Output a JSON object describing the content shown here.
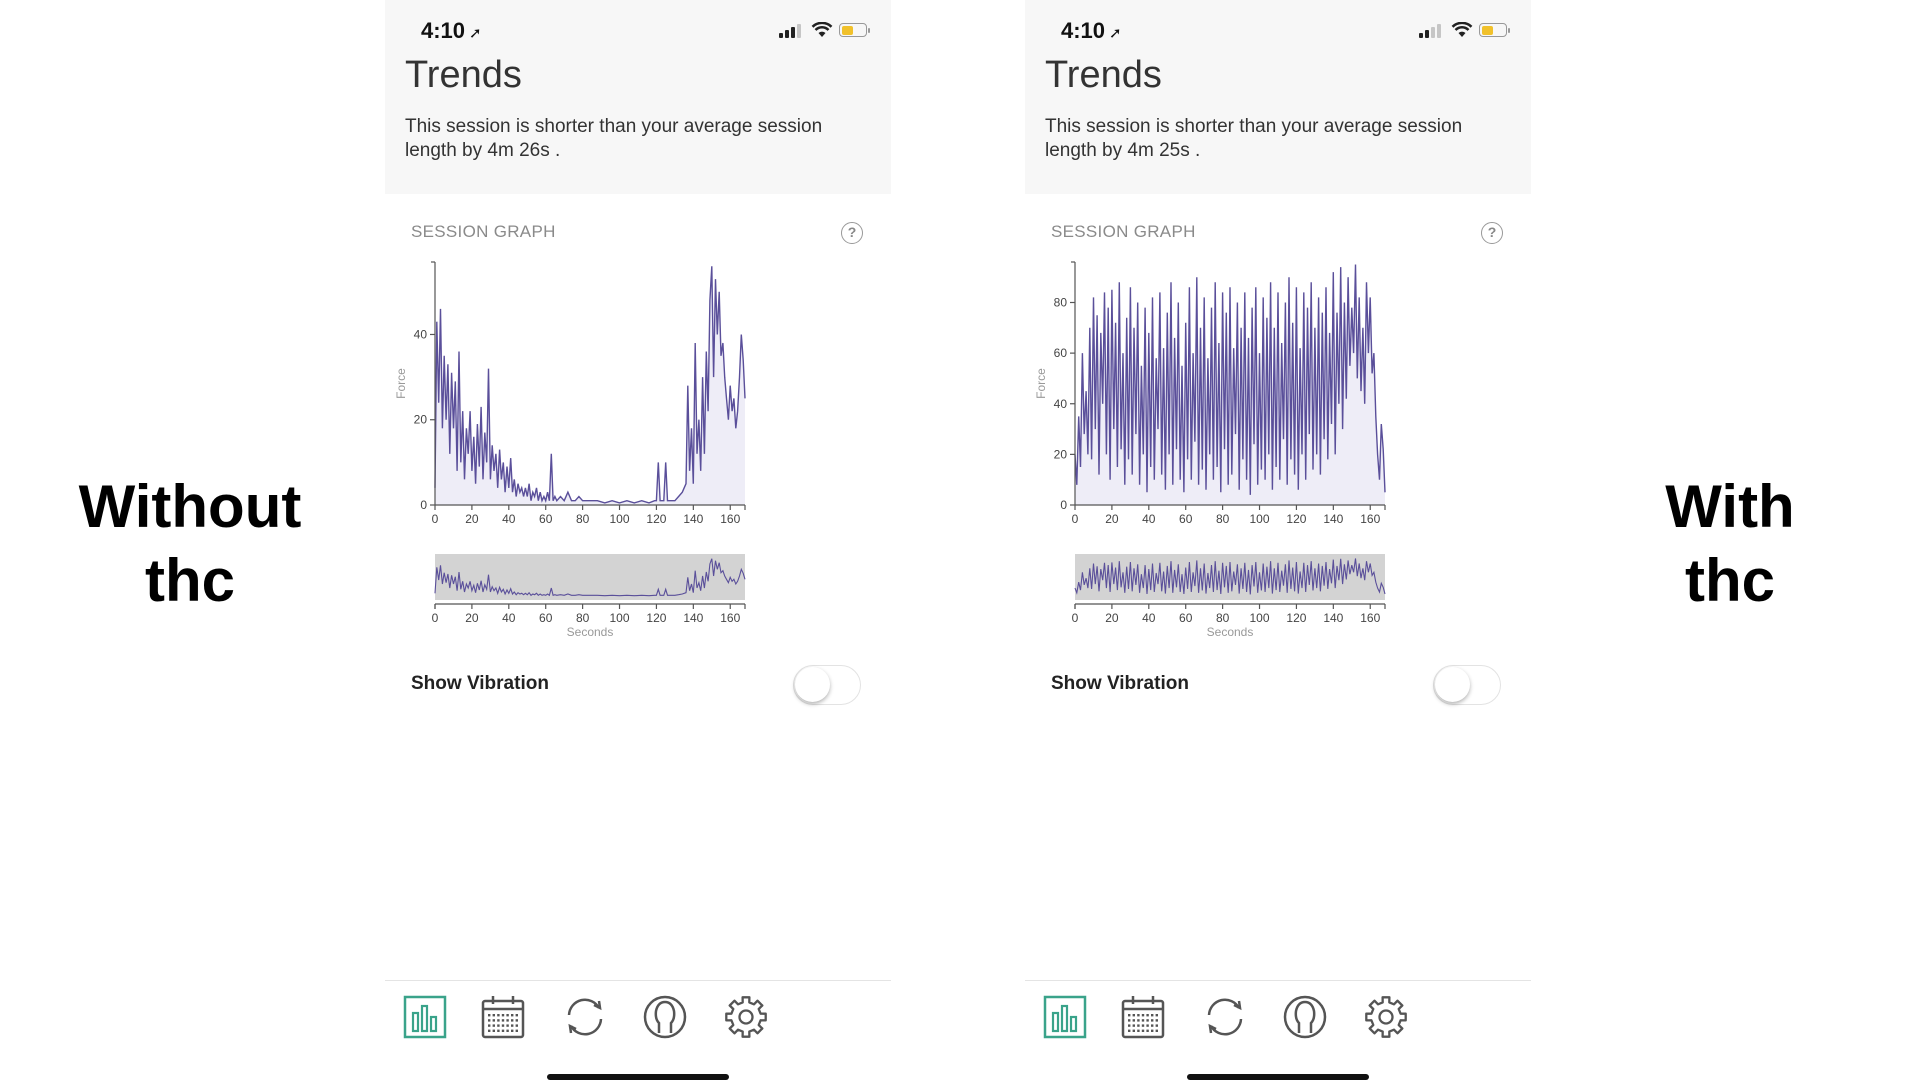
{
  "labels": {
    "left": [
      "Without",
      "thc"
    ],
    "right": [
      "With",
      "thc"
    ]
  },
  "phones": [
    {
      "id": "left",
      "status": {
        "time": "4:10",
        "location_arrow": "➚",
        "signal_bars_lit": 3
      },
      "title": "Trends",
      "summary": "This session is shorter than your average session length by 4m 26s .",
      "section_title": "SESSION GRAPH",
      "help": "?",
      "vibration_label": "Show Vibration",
      "vibration_on": false,
      "chart_data": {
        "type": "area",
        "ylabel": "Force",
        "xlabel": "Seconds",
        "xlim": [
          0,
          168
        ],
        "ylim": [
          0,
          57
        ],
        "yticks": [
          0,
          20,
          40
        ],
        "xticks": [
          0,
          20,
          40,
          60,
          80,
          100,
          120,
          140,
          160
        ],
        "series_color": "#5a4f9a",
        "points": [
          [
            0,
            4
          ],
          [
            1,
            43
          ],
          [
            2,
            24
          ],
          [
            3,
            46
          ],
          [
            4,
            18
          ],
          [
            5,
            35
          ],
          [
            6,
            20
          ],
          [
            7,
            33
          ],
          [
            8,
            12
          ],
          [
            9,
            31
          ],
          [
            10,
            18
          ],
          [
            11,
            29
          ],
          [
            12,
            8
          ],
          [
            13,
            36
          ],
          [
            14,
            10
          ],
          [
            15,
            22
          ],
          [
            16,
            6
          ],
          [
            17,
            18
          ],
          [
            18,
            12
          ],
          [
            19,
            22
          ],
          [
            20,
            8
          ],
          [
            21,
            16
          ],
          [
            22,
            5
          ],
          [
            23,
            19
          ],
          [
            24,
            9
          ],
          [
            25,
            23
          ],
          [
            26,
            6
          ],
          [
            27,
            17
          ],
          [
            28,
            10
          ],
          [
            29,
            32
          ],
          [
            30,
            6
          ],
          [
            31,
            14
          ],
          [
            32,
            8
          ],
          [
            33,
            12
          ],
          [
            34,
            4
          ],
          [
            35,
            13
          ],
          [
            36,
            6
          ],
          [
            37,
            10
          ],
          [
            38,
            3
          ],
          [
            39,
            9
          ],
          [
            40,
            4
          ],
          [
            41,
            11
          ],
          [
            42,
            3
          ],
          [
            43,
            6
          ],
          [
            44,
            2
          ],
          [
            45,
            5
          ],
          [
            46,
            3
          ],
          [
            47,
            4
          ],
          [
            48,
            2
          ],
          [
            49,
            4
          ],
          [
            50,
            2
          ],
          [
            51,
            5
          ],
          [
            52,
            1
          ],
          [
            53,
            3
          ],
          [
            54,
            2
          ],
          [
            55,
            4
          ],
          [
            56,
            1
          ],
          [
            57,
            3
          ],
          [
            58,
            1
          ],
          [
            59,
            2
          ],
          [
            60,
            1
          ],
          [
            61,
            3
          ],
          [
            62,
            1
          ],
          [
            63,
            12
          ],
          [
            64,
            1
          ],
          [
            65,
            2
          ],
          [
            66,
            1
          ],
          [
            68,
            2
          ],
          [
            70,
            1
          ],
          [
            72,
            3
          ],
          [
            74,
            1
          ],
          [
            76,
            1
          ],
          [
            78,
            2
          ],
          [
            80,
            1
          ],
          [
            84,
            1
          ],
          [
            88,
            1
          ],
          [
            92,
            0.5
          ],
          [
            96,
            1
          ],
          [
            100,
            0.5
          ],
          [
            104,
            1
          ],
          [
            108,
            0.5
          ],
          [
            112,
            1
          ],
          [
            116,
            0.5
          ],
          [
            119,
            1
          ],
          [
            120,
            1
          ],
          [
            121,
            10
          ],
          [
            122,
            1
          ],
          [
            124,
            1
          ],
          [
            125,
            10
          ],
          [
            126,
            1
          ],
          [
            128,
            1
          ],
          [
            130,
            1
          ],
          [
            132,
            2
          ],
          [
            134,
            3
          ],
          [
            136,
            5
          ],
          [
            137,
            28
          ],
          [
            138,
            8
          ],
          [
            139,
            18
          ],
          [
            140,
            5
          ],
          [
            141,
            38
          ],
          [
            142,
            12
          ],
          [
            143,
            20
          ],
          [
            144,
            8
          ],
          [
            145,
            30
          ],
          [
            146,
            12
          ],
          [
            147,
            36
          ],
          [
            148,
            22
          ],
          [
            149,
            48
          ],
          [
            150,
            56
          ],
          [
            151,
            30
          ],
          [
            152,
            53
          ],
          [
            153,
            40
          ],
          [
            154,
            50
          ],
          [
            155,
            35
          ],
          [
            156,
            38
          ],
          [
            157,
            30
          ],
          [
            158,
            25
          ],
          [
            159,
            20
          ],
          [
            160,
            28
          ],
          [
            161,
            22
          ],
          [
            162,
            25
          ],
          [
            163,
            18
          ],
          [
            164,
            22
          ],
          [
            165,
            30
          ],
          [
            166,
            40
          ],
          [
            167,
            34
          ],
          [
            168,
            25
          ]
        ]
      },
      "tabs": [
        "chart-icon",
        "calendar-icon",
        "sync-icon",
        "profile-icon",
        "gear-icon"
      ]
    },
    {
      "id": "right",
      "status": {
        "time": "4:10",
        "location_arrow": "➚",
        "signal_bars_lit": 2
      },
      "title": "Trends",
      "summary": "This session is shorter than your average session length by 4m 25s .",
      "section_title": "SESSION GRAPH",
      "help": "?",
      "vibration_label": "Show Vibration",
      "vibration_on": false,
      "chart_data": {
        "type": "area",
        "ylabel": "Force",
        "xlabel": "Seconds",
        "xlim": [
          0,
          168
        ],
        "ylim": [
          0,
          96
        ],
        "yticks": [
          0,
          20,
          40,
          60,
          80
        ],
        "xticks": [
          0,
          20,
          40,
          60,
          80,
          100,
          120,
          140,
          160
        ],
        "series_color": "#5a4f9a",
        "points": [
          [
            0,
            20
          ],
          [
            1,
            8
          ],
          [
            2,
            35
          ],
          [
            3,
            15
          ],
          [
            4,
            60
          ],
          [
            5,
            28
          ],
          [
            6,
            45
          ],
          [
            7,
            20
          ],
          [
            8,
            70
          ],
          [
            9,
            18
          ],
          [
            10,
            82
          ],
          [
            11,
            30
          ],
          [
            12,
            75
          ],
          [
            13,
            12
          ],
          [
            14,
            68
          ],
          [
            15,
            40
          ],
          [
            16,
            84
          ],
          [
            17,
            20
          ],
          [
            18,
            78
          ],
          [
            19,
            10
          ],
          [
            20,
            85
          ],
          [
            21,
            30
          ],
          [
            22,
            72
          ],
          [
            23,
            15
          ],
          [
            24,
            88
          ],
          [
            25,
            22
          ],
          [
            26,
            60
          ],
          [
            27,
            8
          ],
          [
            28,
            74
          ],
          [
            29,
            18
          ],
          [
            30,
            86
          ],
          [
            31,
            12
          ],
          [
            32,
            70
          ],
          [
            33,
            28
          ],
          [
            34,
            80
          ],
          [
            35,
            8
          ],
          [
            36,
            55
          ],
          [
            37,
            20
          ],
          [
            38,
            78
          ],
          [
            39,
            5
          ],
          [
            40,
            68
          ],
          [
            41,
            15
          ],
          [
            42,
            82
          ],
          [
            43,
            10
          ],
          [
            44,
            58
          ],
          [
            45,
            30
          ],
          [
            46,
            84
          ],
          [
            47,
            12
          ],
          [
            48,
            62
          ],
          [
            49,
            6
          ],
          [
            50,
            76
          ],
          [
            51,
            20
          ],
          [
            52,
            88
          ],
          [
            53,
            8
          ],
          [
            54,
            66
          ],
          [
            55,
            22
          ],
          [
            56,
            80
          ],
          [
            57,
            10
          ],
          [
            58,
            55
          ],
          [
            59,
            5
          ],
          [
            60,
            72
          ],
          [
            61,
            18
          ],
          [
            62,
            86
          ],
          [
            63,
            10
          ],
          [
            64,
            60
          ],
          [
            65,
            25
          ],
          [
            66,
            90
          ],
          [
            67,
            8
          ],
          [
            68,
            70
          ],
          [
            69,
            14
          ],
          [
            70,
            82
          ],
          [
            71,
            6
          ],
          [
            72,
            58
          ],
          [
            73,
            20
          ],
          [
            74,
            78
          ],
          [
            75,
            10
          ],
          [
            76,
            88
          ],
          [
            77,
            15
          ],
          [
            78,
            64
          ],
          [
            79,
            5
          ],
          [
            80,
            84
          ],
          [
            81,
            22
          ],
          [
            82,
            76
          ],
          [
            83,
            8
          ],
          [
            84,
            86
          ],
          [
            85,
            12
          ],
          [
            86,
            62
          ],
          [
            87,
            28
          ],
          [
            88,
            80
          ],
          [
            89,
            6
          ],
          [
            90,
            70
          ],
          [
            91,
            18
          ],
          [
            92,
            84
          ],
          [
            93,
            10
          ],
          [
            94,
            66
          ],
          [
            95,
            4
          ],
          [
            96,
            78
          ],
          [
            97,
            24
          ],
          [
            98,
            86
          ],
          [
            99,
            8
          ],
          [
            100,
            60
          ],
          [
            101,
            14
          ],
          [
            102,
            82
          ],
          [
            103,
            10
          ],
          [
            104,
            74
          ],
          [
            105,
            20
          ],
          [
            106,
            88
          ],
          [
            107,
            6
          ],
          [
            108,
            70
          ],
          [
            109,
            15
          ],
          [
            110,
            84
          ],
          [
            111,
            10
          ],
          [
            112,
            64
          ],
          [
            113,
            26
          ],
          [
            114,
            80
          ],
          [
            115,
            8
          ],
          [
            116,
            90
          ],
          [
            117,
            18
          ],
          [
            118,
            72
          ],
          [
            119,
            12
          ],
          [
            120,
            86
          ],
          [
            121,
            6
          ],
          [
            122,
            62
          ],
          [
            123,
            20
          ],
          [
            124,
            84
          ],
          [
            125,
            10
          ],
          [
            126,
            78
          ],
          [
            127,
            28
          ],
          [
            128,
            88
          ],
          [
            129,
            14
          ],
          [
            130,
            70
          ],
          [
            131,
            20
          ],
          [
            132,
            82
          ],
          [
            133,
            12
          ],
          [
            134,
            76
          ],
          [
            135,
            26
          ],
          [
            136,
            86
          ],
          [
            137,
            18
          ],
          [
            138,
            68
          ],
          [
            139,
            32
          ],
          [
            140,
            92
          ],
          [
            141,
            20
          ],
          [
            142,
            76
          ],
          [
            143,
            40
          ],
          [
            144,
            94
          ],
          [
            145,
            30
          ],
          [
            146,
            80
          ],
          [
            147,
            42
          ],
          [
            148,
            90
          ],
          [
            149,
            55
          ],
          [
            150,
            78
          ],
          [
            151,
            60
          ],
          [
            152,
            95
          ],
          [
            153,
            50
          ],
          [
            154,
            82
          ],
          [
            155,
            45
          ],
          [
            156,
            70
          ],
          [
            157,
            40
          ],
          [
            158,
            88
          ],
          [
            159,
            60
          ],
          [
            160,
            82
          ],
          [
            161,
            52
          ],
          [
            162,
            60
          ],
          [
            163,
            35
          ],
          [
            164,
            20
          ],
          [
            165,
            10
          ],
          [
            166,
            32
          ],
          [
            167,
            22
          ],
          [
            168,
            5
          ]
        ]
      },
      "tabs": [
        "chart-icon",
        "calendar-icon",
        "sync-icon",
        "profile-icon",
        "gear-icon"
      ]
    }
  ]
}
